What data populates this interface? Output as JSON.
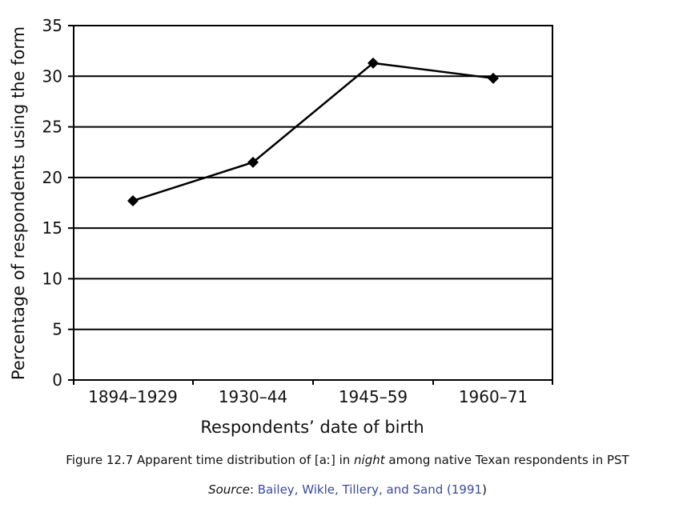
{
  "chart_data": {
    "type": "line",
    "categories": [
      "1894–1929",
      "1930–44",
      "1945–59",
      "1960–71"
    ],
    "series": [
      {
        "values": [
          17.7,
          21.5,
          31.3,
          29.8
        ]
      }
    ],
    "xlabel": "Respondents’ date of birth",
    "ylabel": "Percentage of respondents using the form",
    "ylim": [
      0,
      35
    ],
    "yticks": [
      0,
      5,
      10,
      15,
      20,
      25,
      30,
      35
    ],
    "grid": true,
    "marker": "diamond",
    "colors": {
      "line": "#000000",
      "grid": "#000000"
    }
  },
  "caption": {
    "prefix": "Figure 12.7 Apparent time distribution of [aː] in ",
    "italic": "night",
    "suffix": " among native Texan respondents in PST"
  },
  "source": {
    "label": "Source",
    "colon": ": ",
    "citation": "Bailey, Wikle, Tillery, and Sand (1991",
    "close": ")"
  }
}
